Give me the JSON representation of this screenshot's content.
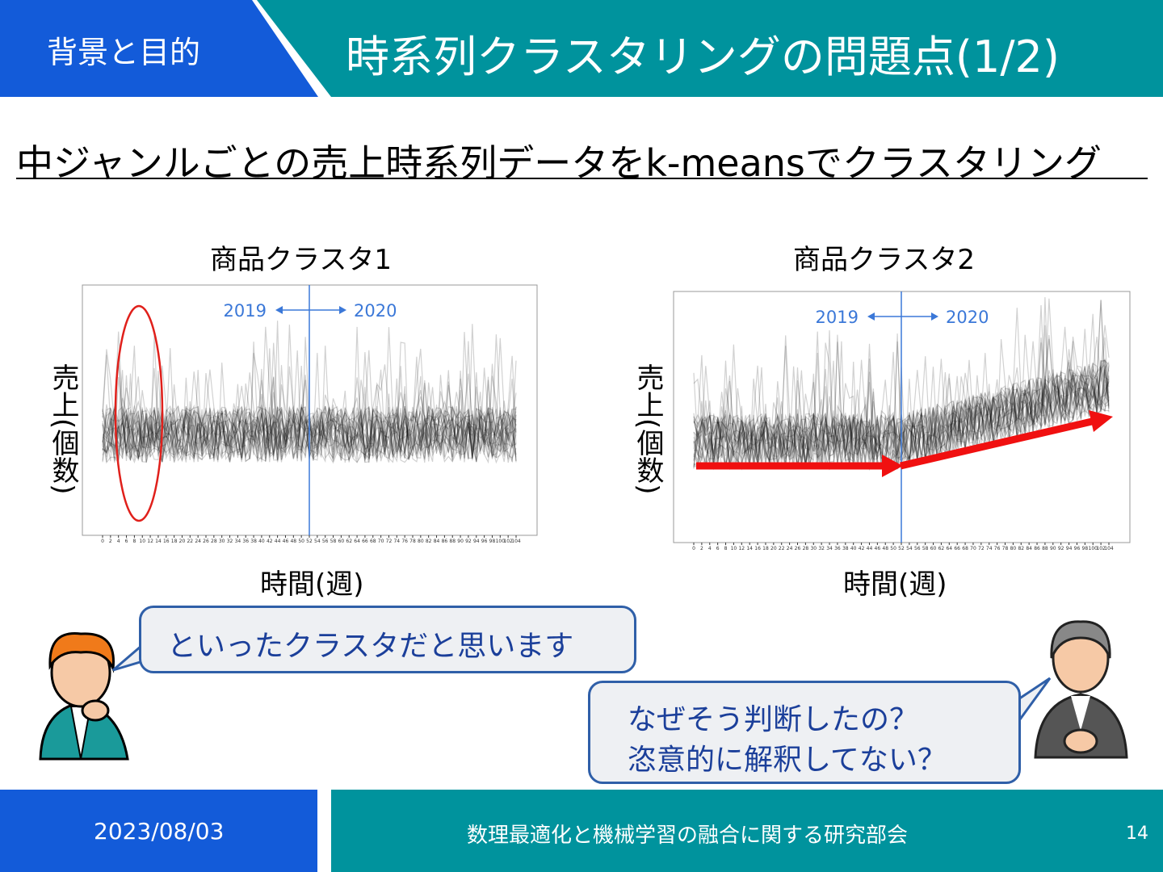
{
  "header": {
    "section": "背景と目的",
    "title": "時系列クラスタリングの問題点(1/2)"
  },
  "subtitle": "中ジャンルごとの売上時系列データをk-meansでクラスタリング",
  "panels": [
    {
      "title": "商品クラスタ1",
      "y_label": "売上(個数)",
      "x_label": "時間(週)",
      "year_left": "2019",
      "year_right": "2020",
      "xticks": [
        0,
        2,
        4,
        6,
        8,
        10,
        12,
        14,
        16,
        18,
        20,
        22,
        24,
        26,
        28,
        30,
        32,
        34,
        36,
        38,
        40,
        42,
        44,
        46,
        48,
        50,
        52,
        54,
        56,
        58,
        60,
        62,
        64,
        66,
        68,
        70,
        72,
        74,
        76,
        78,
        80,
        82,
        84,
        86,
        88,
        90,
        92,
        94,
        96,
        98,
        100,
        102,
        104
      ]
    },
    {
      "title": "商品クラスタ2",
      "y_label": "売上(個数)",
      "x_label": "時間(週)",
      "year_left": "2019",
      "year_right": "2020",
      "xticks": [
        0,
        2,
        4,
        6,
        8,
        10,
        12,
        14,
        16,
        18,
        20,
        22,
        24,
        26,
        28,
        30,
        32,
        34,
        36,
        38,
        40,
        42,
        44,
        46,
        48,
        50,
        52,
        54,
        56,
        58,
        60,
        62,
        64,
        66,
        68,
        70,
        72,
        74,
        76,
        78,
        80,
        82,
        84,
        86,
        88,
        90,
        92,
        94,
        96,
        98,
        100,
        102,
        104
      ]
    }
  ],
  "bubbles": {
    "left": "といったクラスタだと思います",
    "right": [
      "なぜそう判断したの？",
      "恣意的に解釈してない？"
    ]
  },
  "footer": {
    "date": "2023/08/03",
    "organization": "数理最適化と機械学習の融合に関する研究部会",
    "page": "14"
  }
}
